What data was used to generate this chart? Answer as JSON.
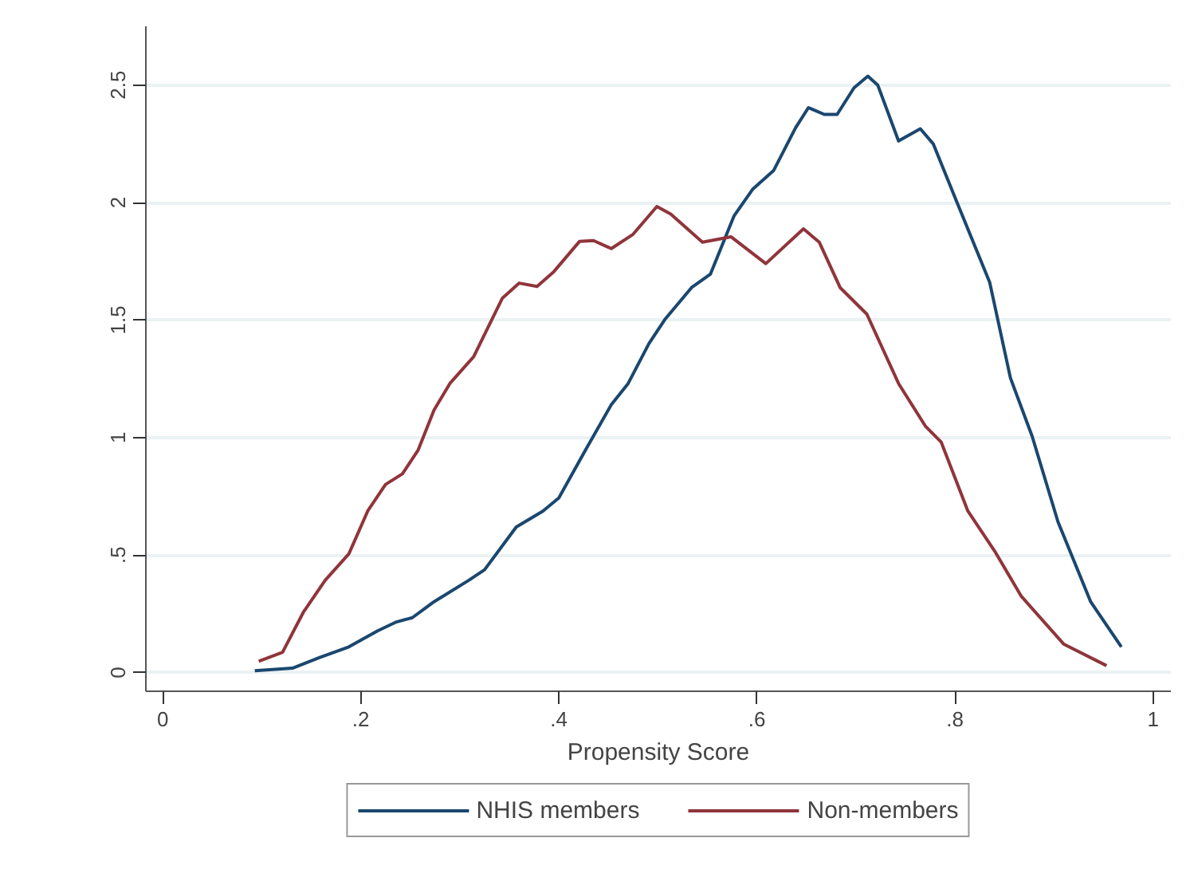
{
  "chart_data": {
    "type": "line",
    "xlabel": "Propensity Score",
    "xlim": [
      -0.017,
      1.018
    ],
    "ylim": [
      -0.08,
      2.75
    ],
    "xticks": [
      0,
      {
        "value": 0.2,
        "label": ".2"
      },
      {
        "value": 0.4,
        "label": ".4"
      },
      {
        "value": 0.6,
        "label": ".6"
      },
      {
        "value": 0.8,
        "label": ".8"
      },
      1
    ],
    "yticks": [
      0,
      {
        "value": 0.5,
        "label": ".5"
      },
      1,
      1.5,
      2,
      2.5
    ],
    "grid": "y",
    "legend": "bottom",
    "marker": "none",
    "line_style": "solid",
    "series": [
      {
        "name": "NHIS members",
        "color": "#1a476f",
        "x": [
          0.093,
          0.131,
          0.158,
          0.188,
          0.217,
          0.236,
          0.252,
          0.274,
          0.309,
          0.325,
          0.357,
          0.384,
          0.4,
          0.427,
          0.453,
          0.47,
          0.491,
          0.507,
          0.534,
          0.553,
          0.577,
          0.596,
          0.617,
          0.639,
          0.652,
          0.668,
          0.681,
          0.698,
          0.712,
          0.722,
          0.743,
          0.765,
          0.778,
          0.802,
          0.835,
          0.856,
          0.878,
          0.904,
          0.937,
          0.968
        ],
        "values": [
          0.007,
          0.018,
          0.063,
          0.109,
          0.177,
          0.215,
          0.233,
          0.301,
          0.392,
          0.437,
          0.619,
          0.687,
          0.743,
          0.947,
          1.14,
          1.23,
          1.4,
          1.502,
          1.638,
          1.695,
          1.944,
          2.058,
          2.137,
          2.318,
          2.404,
          2.375,
          2.375,
          2.488,
          2.538,
          2.5,
          2.262,
          2.314,
          2.25,
          2.001,
          1.661,
          1.253,
          1.004,
          0.641,
          0.301,
          0.109
        ]
      },
      {
        "name": "Non-members",
        "color": "#90353b",
        "x": [
          0.097,
          0.121,
          0.142,
          0.164,
          0.188,
          0.207,
          0.225,
          0.242,
          0.258,
          0.274,
          0.29,
          0.314,
          0.343,
          0.36,
          0.378,
          0.395,
          0.421,
          0.435,
          0.453,
          0.475,
          0.499,
          0.513,
          0.545,
          0.574,
          0.609,
          0.647,
          0.663,
          0.684,
          0.711,
          0.743,
          0.77,
          0.786,
          0.813,
          0.84,
          0.867,
          0.91,
          0.953
        ],
        "values": [
          0.048,
          0.086,
          0.256,
          0.392,
          0.505,
          0.687,
          0.8,
          0.845,
          0.947,
          1.117,
          1.23,
          1.344,
          1.593,
          1.657,
          1.643,
          1.706,
          1.835,
          1.838,
          1.804,
          1.865,
          1.983,
          1.951,
          1.831,
          1.854,
          1.74,
          1.888,
          1.831,
          1.638,
          1.525,
          1.23,
          1.049,
          0.981,
          0.687,
          0.517,
          0.324,
          0.12,
          0.029
        ]
      }
    ]
  }
}
